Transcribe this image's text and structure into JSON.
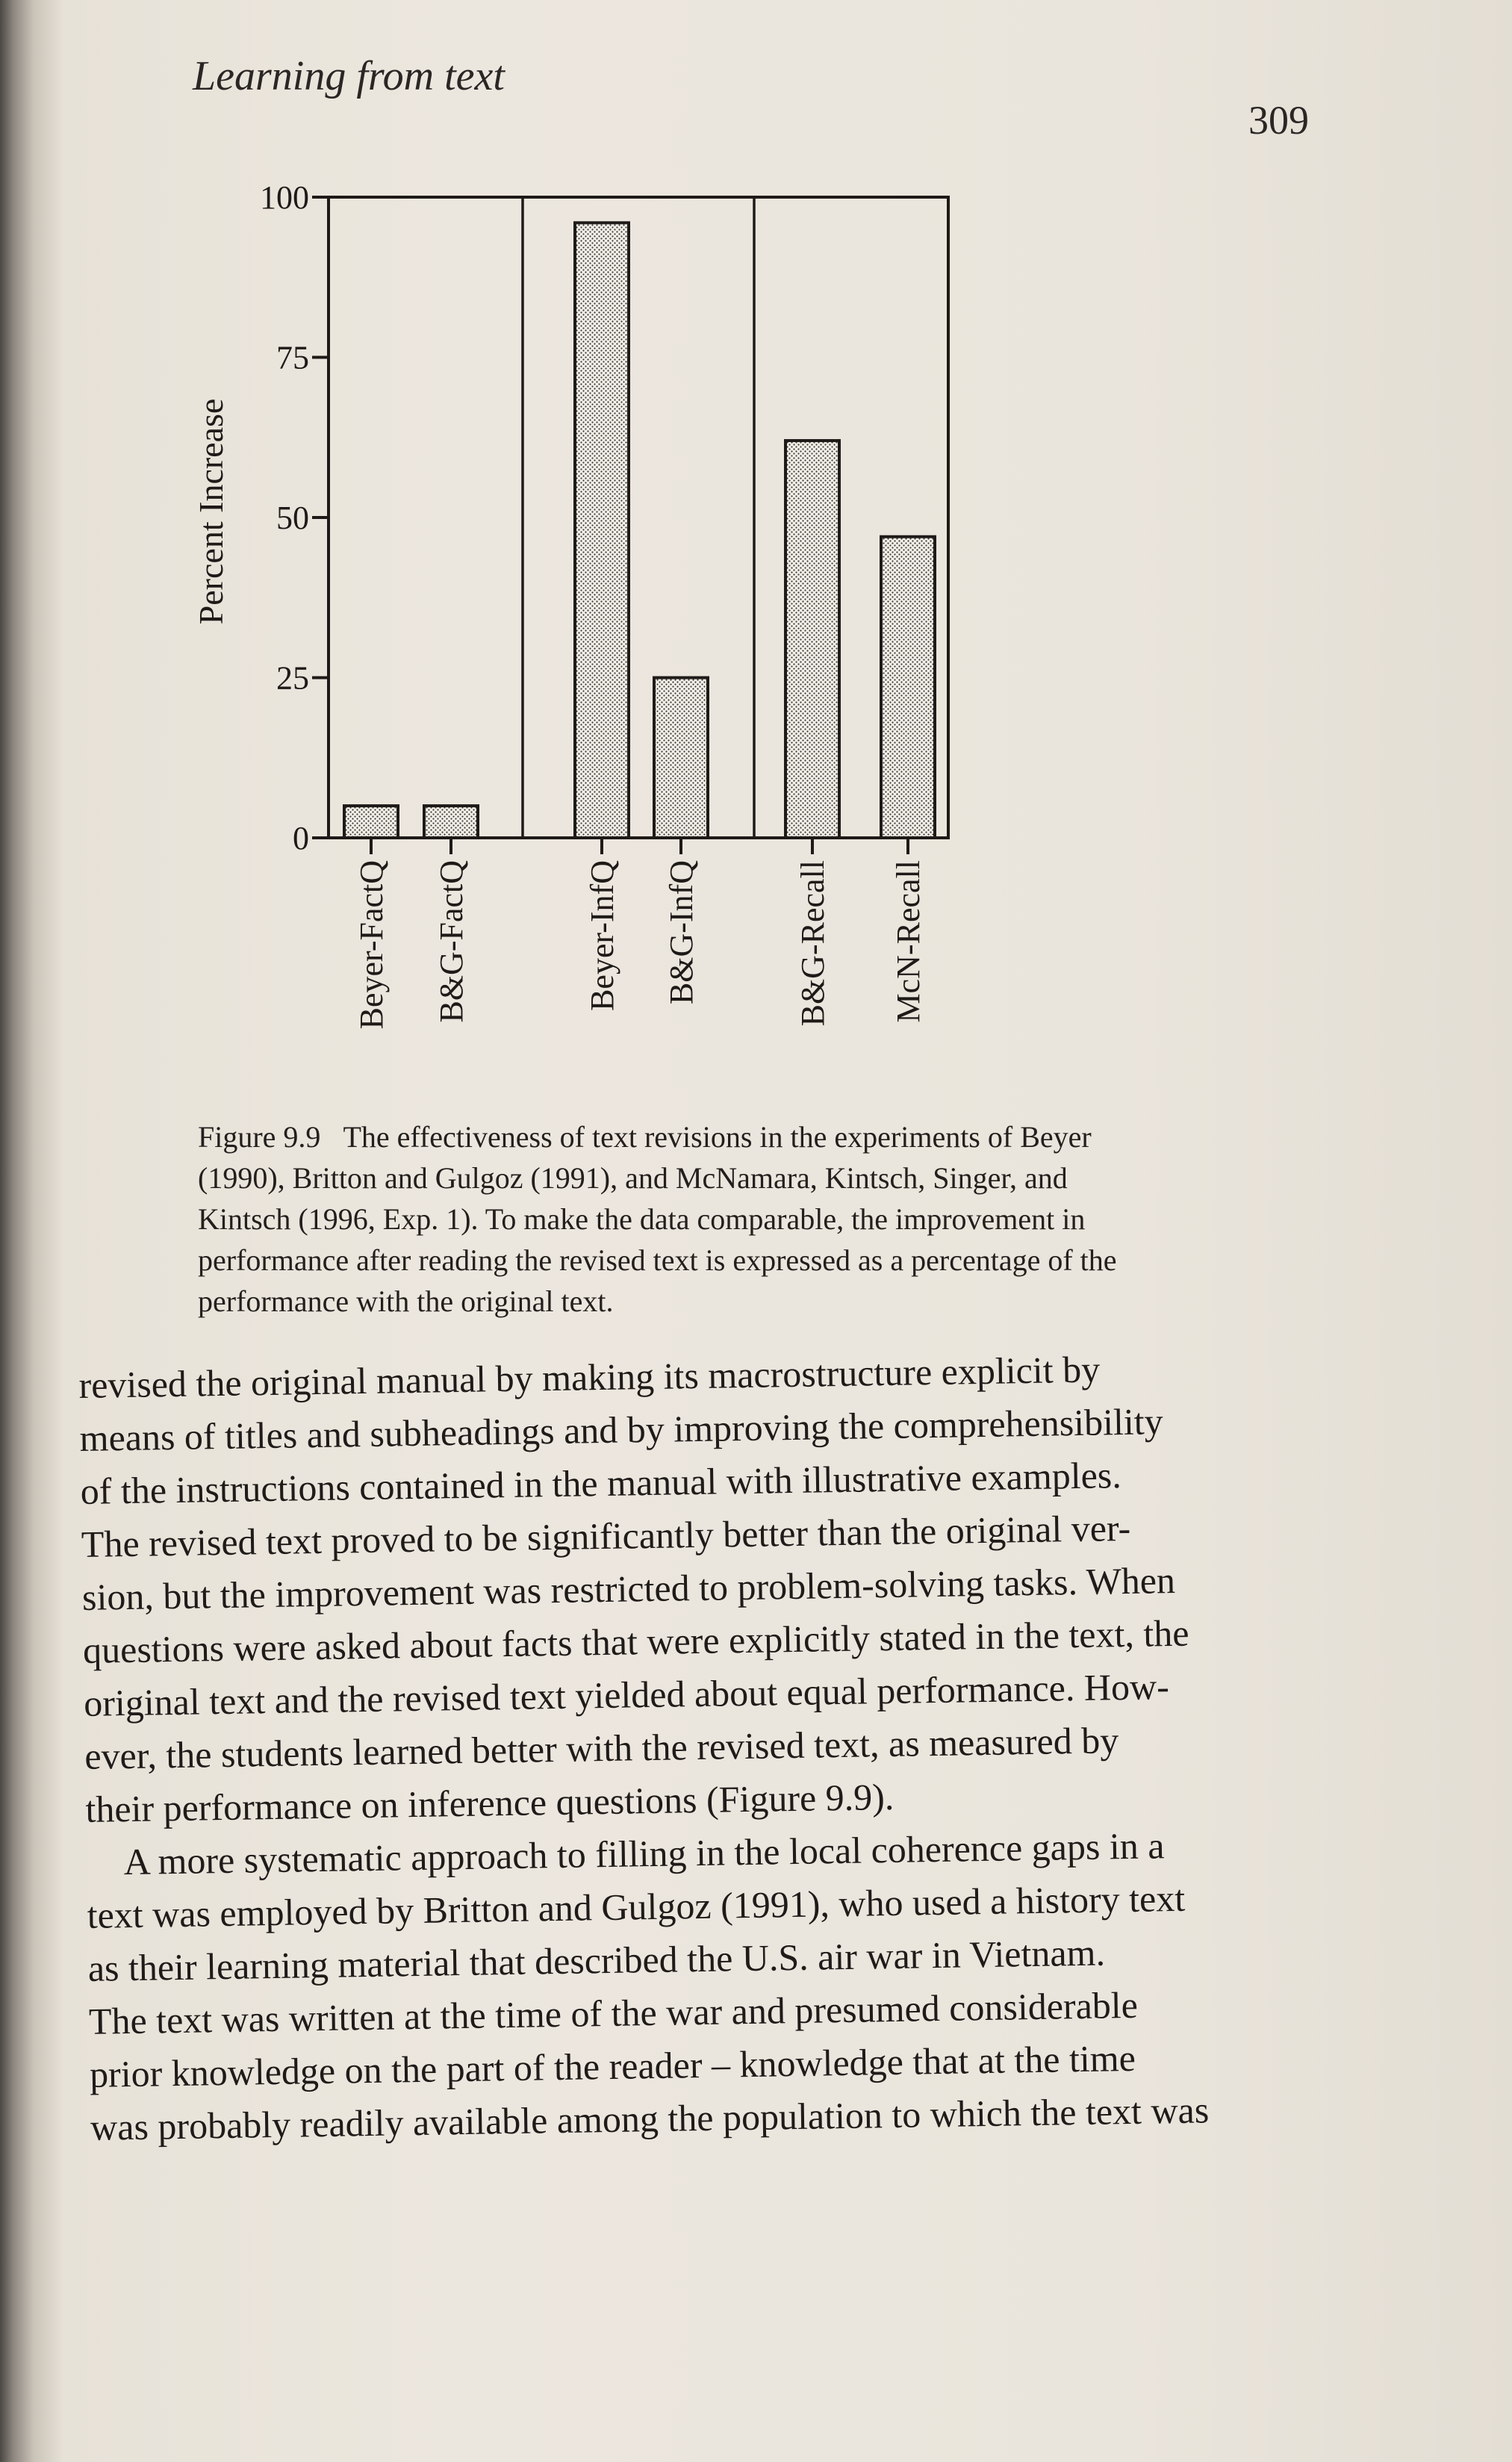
{
  "running_head": "Learning from text",
  "page_number": "309",
  "chart_data": {
    "type": "bar",
    "categories": [
      "Beyer-FactQ",
      "B&G-FactQ",
      "Beyer-InfQ",
      "B&G-InfQ",
      "B&G-Recall",
      "McN-Recall"
    ],
    "values": [
      5,
      5,
      96,
      25,
      62,
      47
    ],
    "groups": [
      [
        "Beyer-FactQ",
        "B&G-FactQ"
      ],
      [
        "Beyer-InfQ",
        "B&G-InfQ"
      ],
      [
        "B&G-Recall",
        "McN-Recall"
      ]
    ],
    "ylabel": "Percent Increase",
    "xlabel": "",
    "title": "",
    "yticks": [
      0,
      25,
      50,
      75,
      100
    ],
    "ylim": [
      0,
      100
    ],
    "grid": false,
    "bar_fill": "dotted-stipple"
  },
  "caption": {
    "label": "Figure 9.9",
    "lines": [
      "The effectiveness of text revisions in the experiments of Beyer",
      "(1990), Britton and Gulgoz (1991), and McNamara, Kintsch, Singer, and",
      "Kintsch (1996, Exp. 1). To make the data comparable, the improvement in",
      "performance after reading the revised text is expressed as a percentage of the",
      "performance with the original text."
    ]
  },
  "body": {
    "paragraph1": [
      "revised the original manual by making its macrostructure explicit by",
      "means of titles and subheadings and by improving the comprehensibility",
      "of the instructions contained in the manual with illustrative examples.",
      "The revised text proved to be significantly better than the original ver-",
      "sion, but the improvement was restricted to problem-solving tasks. When",
      "questions were asked about facts that were explicitly stated in the text, the",
      "original text and the revised text yielded about equal performance. How-",
      "ever, the students learned better with the revised text, as measured by",
      "their performance on inference questions (Figure 9.9)."
    ],
    "paragraph2": [
      "A more systematic approach to filling in the local coherence gaps in a",
      "text was employed by Britton and Gulgoz (1991), who used a history text",
      "as their learning material that described the U.S. air war in Vietnam.",
      "The text was written at the time of the war and presumed considerable",
      "prior knowledge on the part of the reader – knowledge that at the time",
      "was probably readily available among the population to which the text was"
    ]
  }
}
